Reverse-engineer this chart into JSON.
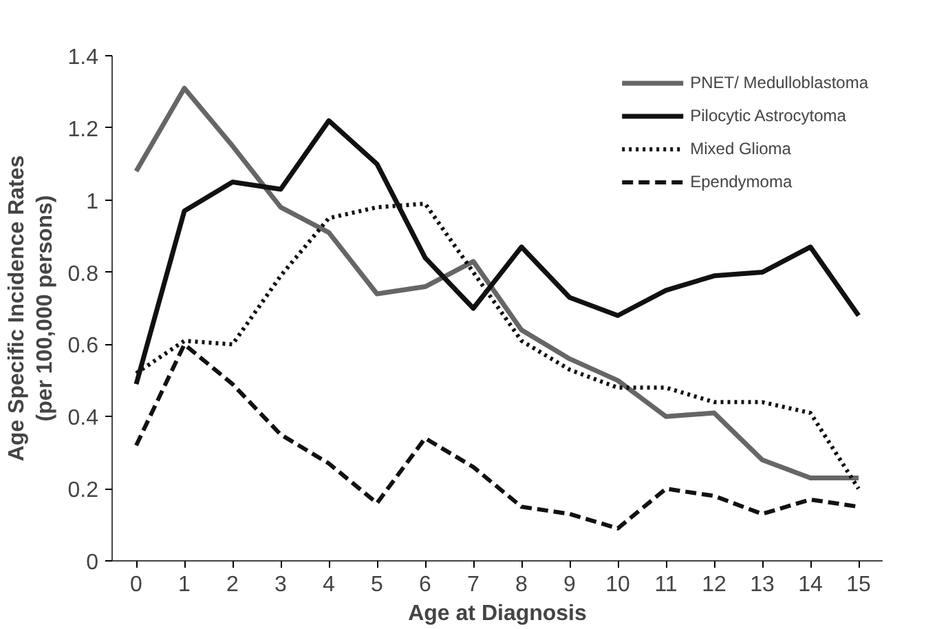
{
  "chart_data": {
    "type": "line",
    "xlabel": "Age at Diagnosis",
    "ylabel": "Age Specific Incidence Rates (per 100,000 persons)",
    "x": [
      0,
      1,
      2,
      3,
      4,
      5,
      6,
      7,
      8,
      9,
      10,
      11,
      12,
      13,
      14,
      15
    ],
    "xlim": [
      -0.5,
      15.5
    ],
    "xticks": [
      0,
      1,
      2,
      3,
      4,
      5,
      6,
      7,
      8,
      9,
      10,
      11,
      12,
      13,
      14,
      15
    ],
    "ylim": [
      0,
      1.4
    ],
    "yticks": [
      0,
      0.2,
      0.4,
      0.6,
      0.8,
      1,
      1.2,
      1.4
    ],
    "grid": false,
    "legend": "top right",
    "marker": "none",
    "series": [
      {
        "name": "PNET/ Medulloblastoma",
        "color": "#666666",
        "line_style": "solid",
        "values": [
          1.08,
          1.31,
          1.15,
          0.98,
          0.91,
          0.74,
          0.76,
          0.83,
          0.64,
          0.56,
          0.5,
          0.4,
          0.41,
          0.28,
          0.23,
          0.23
        ]
      },
      {
        "name": "Pilocytic Astrocytoma",
        "color": "#111111",
        "line_style": "solid",
        "values": [
          0.49,
          0.97,
          1.05,
          1.03,
          1.22,
          1.1,
          0.84,
          0.7,
          0.87,
          0.73,
          0.68,
          0.75,
          0.79,
          0.8,
          0.87,
          0.68
        ]
      },
      {
        "name": "Mixed Glioma",
        "color": "#111111",
        "line_style": "dotted",
        "values": [
          0.52,
          0.61,
          0.6,
          0.79,
          0.95,
          0.98,
          0.99,
          0.8,
          0.61,
          0.53,
          0.48,
          0.48,
          0.44,
          0.44,
          0.41,
          0.2
        ]
      },
      {
        "name": "Ependymoma",
        "color": "#111111",
        "line_style": "dashed",
        "values": [
          0.32,
          0.6,
          0.49,
          0.35,
          0.27,
          0.16,
          0.34,
          0.26,
          0.15,
          0.13,
          0.09,
          0.2,
          0.18,
          0.13,
          0.17,
          0.15
        ]
      }
    ]
  }
}
